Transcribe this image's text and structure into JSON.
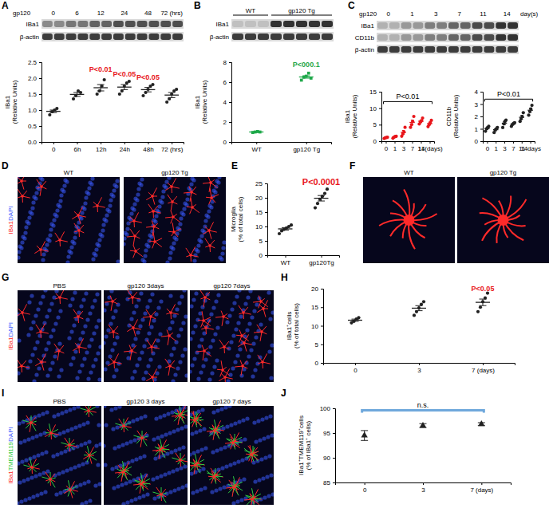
{
  "panel_labels": [
    "A",
    "B",
    "C",
    "D",
    "E",
    "F",
    "G",
    "H",
    "I",
    "J"
  ],
  "blots": [
    {
      "header": "gp120",
      "lanes": [
        "0",
        "6",
        "12",
        "24",
        "48",
        "72 (hrs)"
      ],
      "rows": [
        "IBa1",
        "β-actin"
      ]
    },
    {
      "groups": [
        "WT",
        "gp120 Tg"
      ],
      "rows": [
        "IBa1",
        "β-actin"
      ]
    },
    {
      "header": "gp120",
      "lanes": [
        "0",
        "1",
        "3",
        "7",
        "11",
        "14"
      ],
      "unit": "day(s)",
      "rows": [
        "IBa1",
        "CD11b",
        "β-actin"
      ]
    }
  ],
  "images": [
    {
      "stains": [
        {
          "text": "IBa1",
          "color": "#ff2a2a"
        },
        {
          "text": "DAPI",
          "color": "#3a5bff"
        }
      ],
      "labels": [
        "WT",
        "gp120 Tg"
      ]
    },
    {
      "labels": [
        "WT",
        "gp120 Tg"
      ]
    },
    {
      "stains": [
        {
          "text": "IBa1",
          "color": "#ff2a2a"
        },
        {
          "text": "DAPI",
          "color": "#3a5bff"
        }
      ],
      "labels": [
        "PBS",
        "gp120 3days",
        "gp120 7days"
      ]
    },
    {
      "stains": [
        {
          "text": "IBa1",
          "color": "#ff2a2a"
        },
        {
          "text": "TMEM119",
          "color": "#2ecc40"
        },
        {
          "text": "DAPI",
          "color": "#3a5bff"
        }
      ],
      "labels": [
        "PBS",
        "gp120 3 days",
        "gp120 7 days"
      ]
    }
  ],
  "chart_data": [
    {
      "type": "dot",
      "ylabel": [
        "IBa1",
        "(Relative Units)"
      ],
      "categories": [
        "0",
        "6h",
        "12h",
        "24h",
        "48h",
        "72 (hrs)"
      ],
      "points": [
        [
          0.85,
          0.95,
          1.0,
          1.05
        ],
        [
          1.35,
          1.45,
          1.6,
          1.55
        ],
        [
          1.5,
          1.6,
          1.75,
          1.95
        ],
        [
          1.5,
          1.6,
          1.75,
          1.85,
          1.9
        ],
        [
          1.45,
          1.55,
          1.65,
          1.75,
          1.8
        ],
        [
          1.25,
          1.35,
          1.5,
          1.6,
          1.65
        ]
      ],
      "values": [
        0.96,
        1.49,
        1.7,
        1.72,
        1.64,
        1.47
      ],
      "errors": [
        0.04,
        0.06,
        0.1,
        0.08,
        0.07,
        0.08
      ],
      "color": "#222222",
      "marker": "circle",
      "ylim": [
        0,
        2.5
      ],
      "yticks": [
        {
          "value": 0,
          "label": "0.0"
        },
        {
          "value": 0.5,
          "label": "0.5"
        },
        {
          "value": 1,
          "label": "1.0"
        },
        {
          "value": 1.5,
          "label": "1.5"
        },
        {
          "value": 2,
          "label": "2.0"
        },
        {
          "value": 2.5,
          "label": "2.5"
        }
      ],
      "annotations": [
        {
          "text": "P<0.01",
          "x": 2,
          "y": 2.2,
          "color": "#e8161b"
        },
        {
          "text": "P<0.05",
          "x": 3,
          "y": 2.05,
          "color": "#e8161b"
        },
        {
          "text": "P<0.05",
          "x": 4,
          "y": 1.95,
          "color": "#e8161b"
        }
      ]
    },
    {
      "type": "dot",
      "ylabel": [
        "IBa1",
        "(Relative Units)"
      ],
      "categories": [
        "WT",
        "gp120 Tg"
      ],
      "points": [
        [
          0.95,
          1.0,
          1.05,
          1.0
        ],
        [
          6.2,
          6.5,
          6.6,
          6.9,
          6.4
        ]
      ],
      "values": [
        1.0,
        6.52
      ],
      "errors": [
        0.03,
        0.12
      ],
      "color": "#1fa84a",
      "marker": "square",
      "ylim": [
        0,
        8
      ],
      "yticks": [
        0,
        2,
        4,
        6,
        8
      ],
      "annotations": [
        {
          "text": "P<000.1",
          "x": 1,
          "y": 7.5,
          "color": "#1fa84a"
        }
      ]
    },
    {
      "type": "dot",
      "ylabel": [
        "IBa1",
        "(Relative Units)"
      ],
      "categories": [
        "0",
        "1",
        "3",
        "7",
        "11",
        "14(days)"
      ],
      "points": [
        [
          0.8,
          1.0,
          1.1,
          1.2
        ],
        [
          0.9,
          1.2,
          1.4,
          1.5
        ],
        [
          1.5,
          2.2,
          2.8,
          4.2
        ],
        [
          4.2,
          5.0,
          6.0,
          7.5
        ],
        [
          5.2,
          5.8,
          6.2,
          7.0
        ],
        [
          4.4,
          5.0,
          5.6,
          6.3
        ]
      ],
      "values": [
        1.0,
        1.25,
        2.68,
        5.68,
        6.05,
        5.33
      ],
      "errors": [
        0.08,
        0.13,
        0.58,
        0.71,
        0.38,
        0.41
      ],
      "color": "#e8161b",
      "marker": "circle",
      "ylim": [
        0,
        15
      ],
      "yticks": [
        0,
        5,
        10,
        15
      ],
      "annotations": [
        {
          "text": "P<0.01",
          "span": [
            0,
            5
          ],
          "y": 12,
          "color": "#000000"
        }
      ]
    },
    {
      "type": "dot",
      "ylabel": [
        "CD11b",
        "(Relative Units)"
      ],
      "categories": [
        "0",
        "1",
        "3",
        "7",
        "11",
        "14days"
      ],
      "points": [
        [
          0.8,
          1.0,
          1.1,
          1.2
        ],
        [
          0.7,
          0.9,
          1.0,
          1.1
        ],
        [
          1.1,
          1.4,
          1.6,
          1.7
        ],
        [
          1.2,
          1.35,
          1.45,
          1.5
        ],
        [
          1.6,
          1.8,
          2.0,
          2.3
        ],
        [
          2.1,
          2.4,
          2.6,
          2.9
        ]
      ],
      "values": [
        1.03,
        0.93,
        1.45,
        1.38,
        1.93,
        2.5
      ],
      "errors": [
        0.08,
        0.09,
        0.13,
        0.07,
        0.15,
        0.17
      ],
      "color": "#222222",
      "marker": "circle",
      "ylim": [
        0,
        4
      ],
      "yticks": [
        0,
        1,
        2,
        3,
        4
      ],
      "annotations": [
        {
          "text": "P<0.01",
          "span": [
            0,
            5
          ],
          "y": 3.4,
          "color": "#000000"
        }
      ]
    },
    {
      "type": "dot",
      "ylabel": [
        "Microglia",
        "(% of total cells)"
      ],
      "categories": [
        "WT",
        "gp120Tg"
      ],
      "points": [
        [
          7.5,
          8.5,
          9,
          9.5,
          10,
          10.5
        ],
        [
          16.5,
          18,
          19.5,
          20.5,
          21.5,
          23
        ]
      ],
      "values": [
        9.17,
        19.83
      ],
      "errors": [
        0.45,
        0.95
      ],
      "color": "#222222",
      "marker": "circle",
      "ylim": [
        0,
        25
      ],
      "yticks": [
        0,
        5,
        10,
        15,
        20,
        25
      ],
      "annotations": [
        {
          "text": "P<0.0001",
          "x": 1,
          "y": 24.5,
          "color": "#e8161b"
        }
      ]
    },
    {
      "type": "dot",
      "ylabel": [
        "IBa1⁺cells",
        "(% of total cells)"
      ],
      "categories": [
        "0",
        "3",
        "7 (days)"
      ],
      "points": [
        [
          10.8,
          11.2,
          11.8,
          12.2
        ],
        [
          12.8,
          13.8,
          14.8,
          15.8,
          16.5
        ],
        [
          13.8,
          15,
          16.5,
          17.5,
          18.8
        ]
      ],
      "values": [
        11.5,
        14.74,
        16.32
      ],
      "errors": [
        0.3,
        0.68,
        0.88
      ],
      "color": "#222222",
      "marker": "circle",
      "ylim": [
        0,
        20
      ],
      "yticks": [
        0,
        5,
        10,
        15,
        20
      ],
      "annotations": [
        {
          "text": "P<0.05",
          "x": 2,
          "y": 19.3,
          "color": "#e8161b"
        }
      ]
    },
    {
      "type": "dot",
      "ylabel": [
        "IBa1⁺TMEM119⁺cells",
        "(% of IBa1⁺ cells)"
      ],
      "categories": [
        "0",
        "3",
        "7 (days)"
      ],
      "values": [
        94.5,
        96.5,
        96.8
      ],
      "errors": [
        1.0,
        0.4,
        0.3
      ],
      "color": "#222222",
      "marker": "triangle",
      "ylim": [
        85,
        100
      ],
      "yticks": [
        85,
        90,
        95,
        100
      ],
      "annotations": [
        {
          "text": "n.s.",
          "span": [
            0,
            2
          ],
          "y": 99.6,
          "color": "#6fa8dc"
        }
      ]
    }
  ]
}
